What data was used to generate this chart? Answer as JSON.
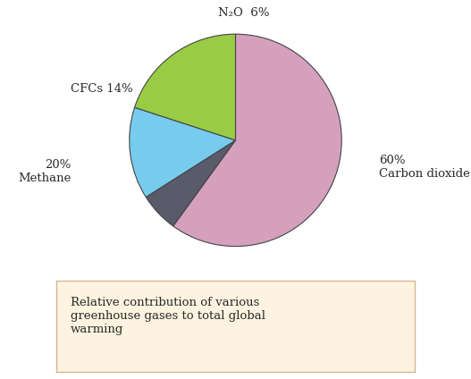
{
  "slices": [
    60,
    6,
    14,
    20
  ],
  "colors": [
    "#d4a0be",
    "#595a6a",
    "#77ccee",
    "#99cc44"
  ],
  "startangle": 90,
  "background_color": "#ffffff",
  "caption_text": "Relative contribution of various\ngreenhouse gases to total global\nwarming",
  "caption_bg": "#fdf3e0",
  "caption_edge": "#d4b896",
  "text_color": "#2a2a2a",
  "label_co2_text": "60%\nCarbon dioxide",
  "label_ch4_text": "20%\nMethane",
  "label_cfcs_text": "CFCs 14%",
  "label_n2o_text": "N₂O  6%"
}
